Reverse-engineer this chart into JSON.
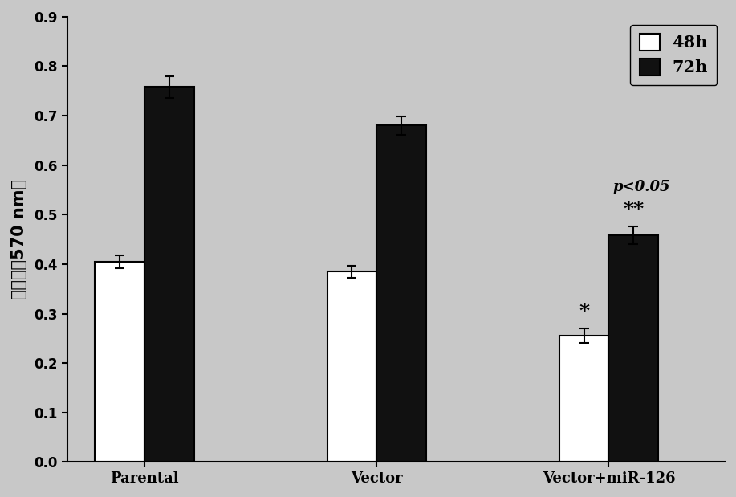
{
  "categories": [
    "Parental",
    "Vector",
    "Vector+miR-126"
  ],
  "values_48h": [
    0.405,
    0.385,
    0.255
  ],
  "values_72h": [
    0.758,
    0.68,
    0.458
  ],
  "errors_48h": [
    0.013,
    0.012,
    0.015
  ],
  "errors_72h": [
    0.022,
    0.018,
    0.018
  ],
  "color_48h": "#ffffff",
  "color_72h": "#111111",
  "edgecolor": "#000000",
  "ylabel": "吸光值（570 nm）",
  "ylim": [
    0,
    0.9
  ],
  "yticks": [
    0,
    0.1,
    0.2,
    0.3,
    0.4,
    0.5,
    0.6,
    0.7,
    0.8,
    0.9
  ],
  "legend_labels": [
    "48h",
    "72h"
  ],
  "bar_width": 0.32,
  "annotation_star48_group3": "*",
  "annotation_star72_group3": "**",
  "annotation_pval": "p<0.05",
  "background_color": "#c8c8c8",
  "plot_bg_color": "#c8c8c8",
  "title": ""
}
